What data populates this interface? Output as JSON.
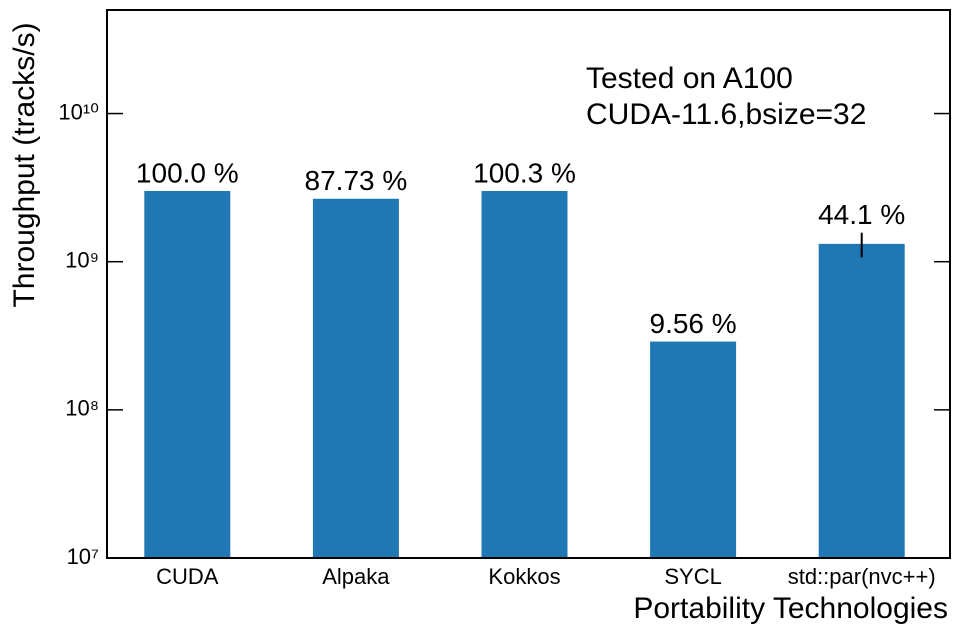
{
  "chart_data": {
    "type": "bar",
    "xlabel": "Portability Technologies",
    "ylabel": "Throughput (tracks/s)",
    "annotations": [
      "Tested on A100",
      "CUDA-11.6,bsize=32"
    ],
    "categories": [
      "CUDA",
      "Alpaka",
      "Kokkos",
      "SYCL",
      "std::par(nvc++)"
    ],
    "values": [
      3000000000,
      2660000000,
      3000000000,
      289000000,
      1320000000
    ],
    "errors": [
      0,
      0,
      0,
      0,
      250000000
    ],
    "bar_labels": [
      "100.0 %",
      "87.73 %",
      "100.3 %",
      "9.56 %",
      "44.1 %"
    ],
    "color": "#1f77b4",
    "log_y": true,
    "ylim": [
      10000000,
      50000000000
    ],
    "yticks": [
      {
        "value": 10000000,
        "label": "10⁷"
      },
      {
        "value": 100000000,
        "label": "10⁸"
      },
      {
        "value": 1000000000,
        "label": "10⁹"
      },
      {
        "value": 10000000000,
        "label": "10¹⁰"
      }
    ],
    "grid": false
  }
}
